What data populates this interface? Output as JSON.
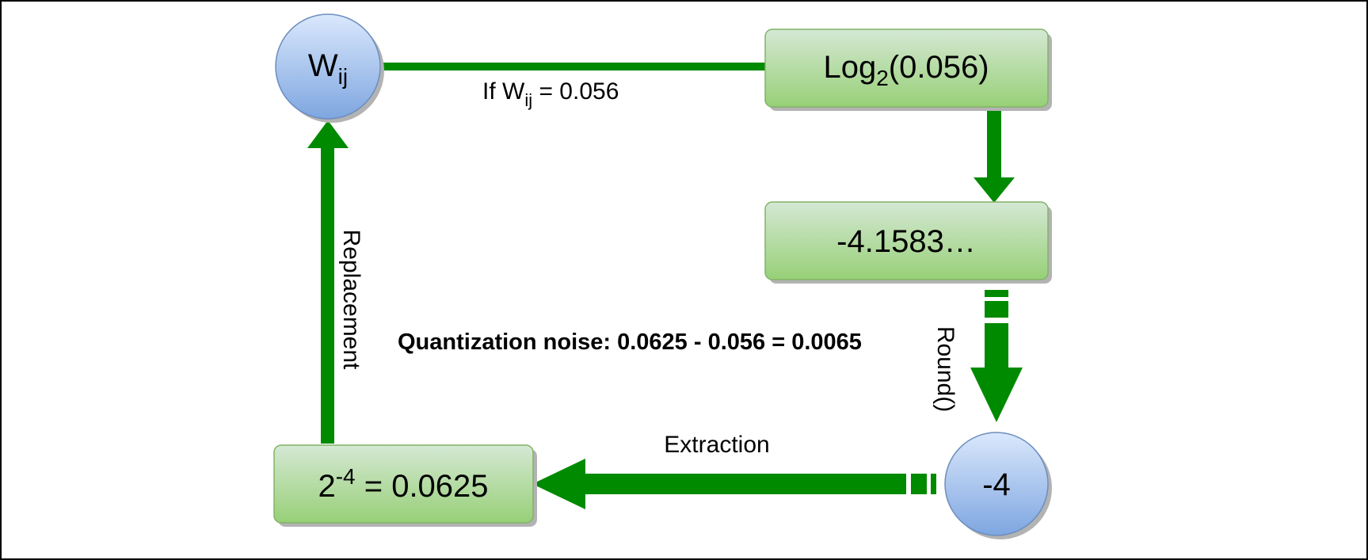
{
  "nodes": {
    "w_ij": {
      "base": "W",
      "sub": "ij"
    },
    "log2": {
      "prefix": "Log",
      "sub": "2",
      "suffix": "(0.056)"
    },
    "log_result": {
      "text": "-4.1583…"
    },
    "rounded": {
      "text": "-4"
    },
    "power": {
      "base": "2",
      "sup": "-4",
      "suffix": " = 0.0625"
    }
  },
  "edges": {
    "condition": {
      "prefix": "If W",
      "sub": "ij",
      "suffix": " = 0.056"
    },
    "round": {
      "label": "Round()"
    },
    "extraction": {
      "label": "Extraction"
    },
    "replacement": {
      "label": "Replacement"
    }
  },
  "note": {
    "text": "Quantization noise: 0.0625 - 0.056 = 0.0065"
  },
  "colors": {
    "arrow": "#008a00",
    "box_fill_top": "#d5e8d4",
    "box_fill_bottom": "#97d077",
    "box_stroke": "#82b366",
    "circle_fill_top": "#dae8fc",
    "circle_fill_bottom": "#7ea6e0",
    "circle_stroke": "#6c8ebf",
    "frame": "#000000"
  }
}
